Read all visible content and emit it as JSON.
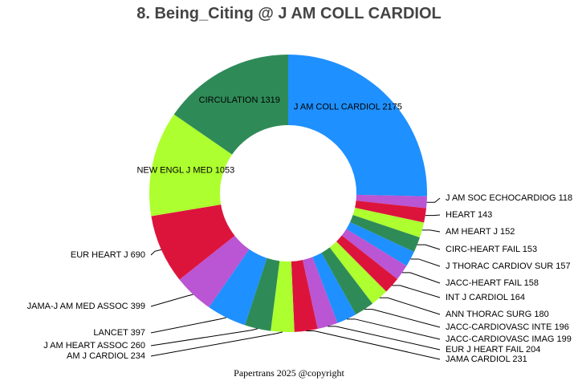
{
  "chart_data": {
    "type": "pie",
    "title": "8. Being_Citing @ J AM COLL CARDIOL",
    "footer": "Papertrans 2025 @copyright",
    "slices": [
      {
        "label": "J AM COLL CARDIOL",
        "value": 2175,
        "color": "#1E90FF"
      },
      {
        "label": "J AM SOC ECHOCARDIOG",
        "value": 118,
        "color": "#BA55D3"
      },
      {
        "label": "HEART",
        "value": 143,
        "color": "#DC143C"
      },
      {
        "label": "AM HEART J",
        "value": 152,
        "color": "#ADFF2F"
      },
      {
        "label": "CIRC-HEART FAIL",
        "value": 153,
        "color": "#2E8B57"
      },
      {
        "label": "J THORAC CARDIOV SUR",
        "value": 157,
        "color": "#1E90FF"
      },
      {
        "label": "JACC-HEART FAIL",
        "value": 158,
        "color": "#BA55D3"
      },
      {
        "label": "INT J CARDIOL",
        "value": 164,
        "color": "#DC143C"
      },
      {
        "label": "ANN THORAC SURG",
        "value": 180,
        "color": "#ADFF2F"
      },
      {
        "label": "JACC-CARDIOVASC INTE",
        "value": 196,
        "color": "#2E8B57"
      },
      {
        "label": "JACC-CARDIOVASC IMAG",
        "value": 199,
        "color": "#1E90FF"
      },
      {
        "label": "EUR J HEART FAIL",
        "value": 204,
        "color": "#BA55D3"
      },
      {
        "label": "JAMA CARDIOL",
        "value": 231,
        "color": "#DC143C"
      },
      {
        "label": "AM J CARDIOL",
        "value": 234,
        "color": "#ADFF2F"
      },
      {
        "label": "J AM HEART ASSOC",
        "value": 260,
        "color": "#2E8B57"
      },
      {
        "label": "LANCET",
        "value": 397,
        "color": "#1E90FF"
      },
      {
        "label": "JAMA-J AM MED ASSOC",
        "value": 399,
        "color": "#BA55D3"
      },
      {
        "label": "EUR HEART J",
        "value": 690,
        "color": "#DC143C"
      },
      {
        "label": "NEW ENGL J MED",
        "value": 1053,
        "color": "#ADFF2F"
      },
      {
        "label": "CIRCULATION",
        "value": 1319,
        "color": "#2E8B57"
      }
    ]
  }
}
